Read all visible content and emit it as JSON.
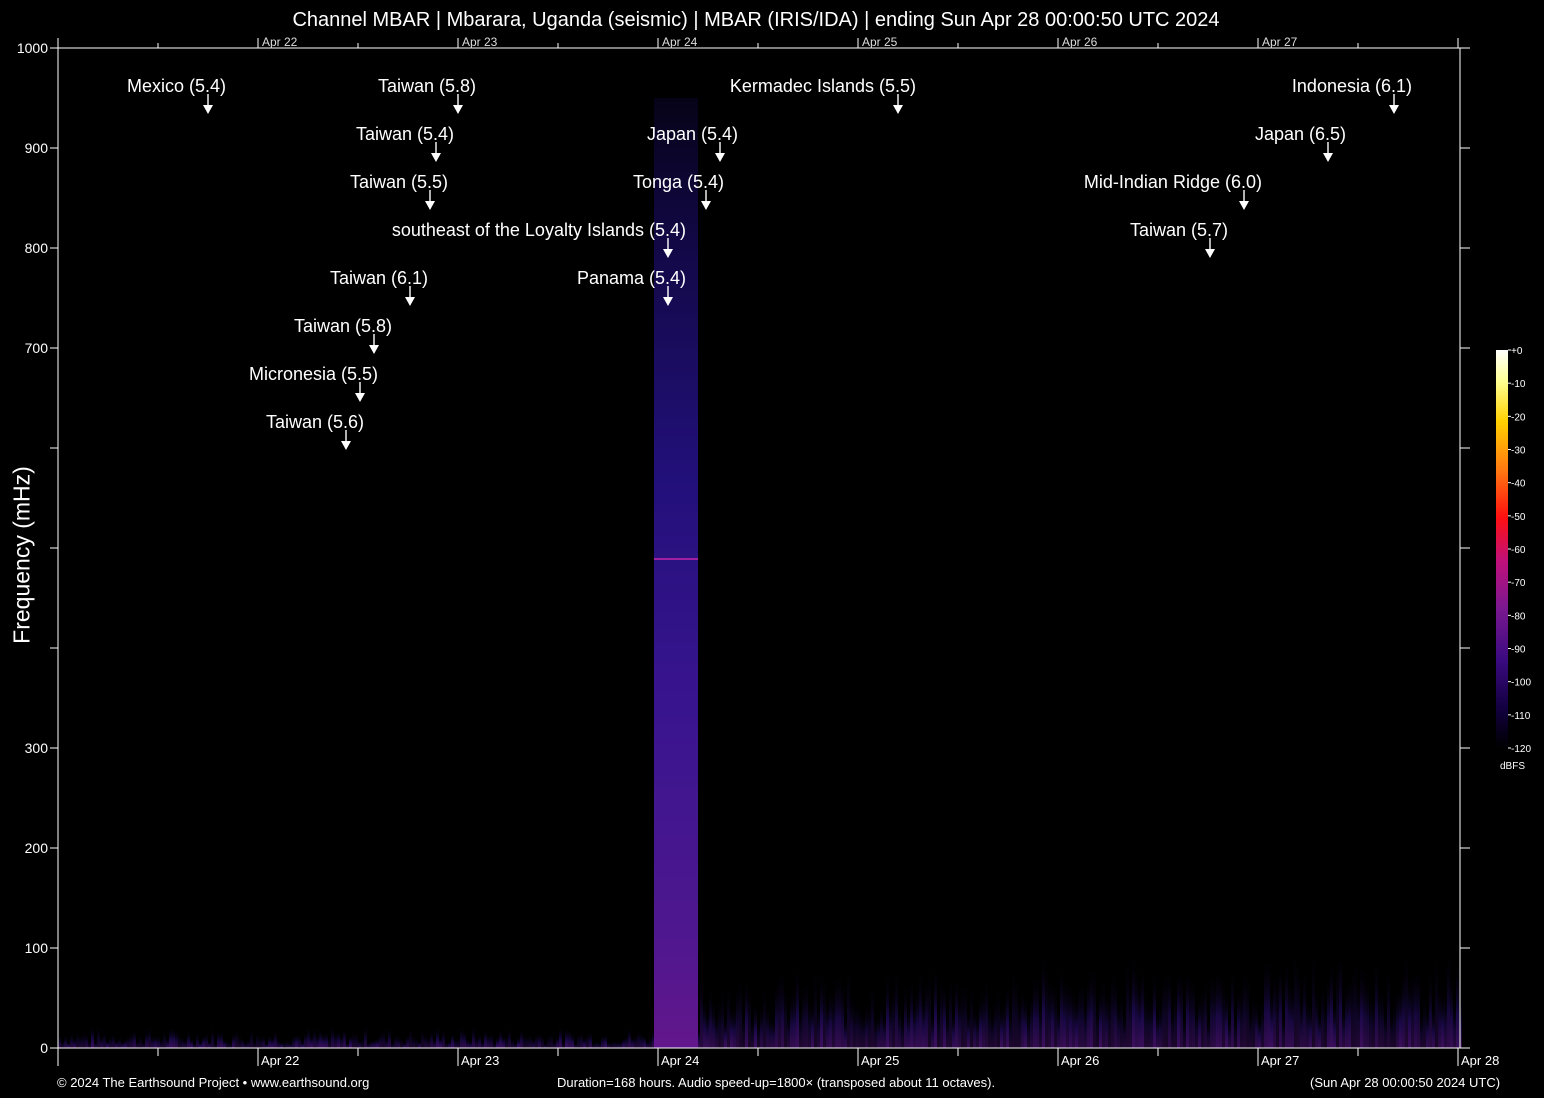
{
  "chart_data": {
    "type": "heatmap",
    "title": "Channel MBAR | Mbarara, Uganda (seismic) | MBAR (IRIS/IDA) | ending Sun Apr 28 00:00:50 UTC 2024",
    "ylabel": "Frequency (mHz)",
    "xlabel": "",
    "x_ticks": [
      "Apr 22",
      "Apr 23",
      "Apr 24",
      "Apr 25",
      "Apr 26",
      "Apr 27",
      "Apr 28"
    ],
    "x_range_days": [
      -0.99,
      6.01
    ],
    "ylim": [
      0,
      1000
    ],
    "y_ticks": [
      0,
      100,
      200,
      300,
      400,
      500,
      600,
      700,
      800,
      900,
      1000
    ],
    "y_tick_labels": [
      "0",
      "100",
      "200",
      "300",
      "",
      "",
      "",
      "700",
      "800",
      "900",
      "1000"
    ],
    "colorbar": {
      "unit": "dBFS",
      "range": [
        -120,
        0
      ],
      "ticks": [
        "+0",
        "-10",
        "-20",
        "-30",
        "-40",
        "-50",
        "-60",
        "-70",
        "-80",
        "-90",
        "-100",
        "-110",
        "-120"
      ],
      "colors": [
        "#000000",
        "#1a0050",
        "#4a1090",
        "#8a1a90",
        "#c0107a",
        "#ff1010",
        "#ff7a10",
        "#ffd000",
        "#ffff90",
        "#ffffff"
      ]
    },
    "events": [
      {
        "label": "Mexico (5.4)",
        "day": -0.25,
        "freq": 940
      },
      {
        "label": "Taiwan (5.8)",
        "day": 1.0,
        "freq": 940
      },
      {
        "label": "Kermadec Islands (5.5)",
        "day": 3.2,
        "freq": 940
      },
      {
        "label": "Indonesia (6.1)",
        "day": 5.68,
        "freq": 940
      },
      {
        "label": "Taiwan (5.4)",
        "day": 0.89,
        "freq": 892
      },
      {
        "label": "Japan (5.4)",
        "day": 2.31,
        "freq": 892
      },
      {
        "label": "Japan (6.5)",
        "day": 5.35,
        "freq": 892
      },
      {
        "label": "Taiwan (5.5)",
        "day": 0.86,
        "freq": 844
      },
      {
        "label": "Tonga (5.4)",
        "day": 2.24,
        "freq": 844
      },
      {
        "label": "Mid-Indian Ridge (6.0)",
        "day": 4.93,
        "freq": 844
      },
      {
        "label": "southeast of the Loyalty Islands (5.4)",
        "day": 2.05,
        "freq": 796
      },
      {
        "label": "Taiwan (5.7)",
        "day": 4.76,
        "freq": 796
      },
      {
        "label": "Taiwan (6.1)",
        "day": 0.76,
        "freq": 748
      },
      {
        "label": "Panama (5.4)",
        "day": 2.05,
        "freq": 748
      },
      {
        "label": "Taiwan (5.8)",
        "day": 0.58,
        "freq": 700
      },
      {
        "label": "Micronesia (5.5)",
        "day": 0.51,
        "freq": 652
      },
      {
        "label": "Taiwan (5.6)",
        "day": 0.44,
        "freq": 604
      }
    ],
    "energy_band": {
      "day_start": 1.98,
      "day_end": 2.2,
      "freq_top": 950,
      "line_freq": 489
    }
  },
  "footer": {
    "left": "© 2024 The Earthsound Project • www.earthsound.org",
    "center": "Duration=168 hours. Audio speed-up=1800× (transposed about 11 octaves).",
    "right": "(Sun Apr 28 00:00:50 2024 UTC)"
  },
  "colorbar_unit": "dBFS"
}
